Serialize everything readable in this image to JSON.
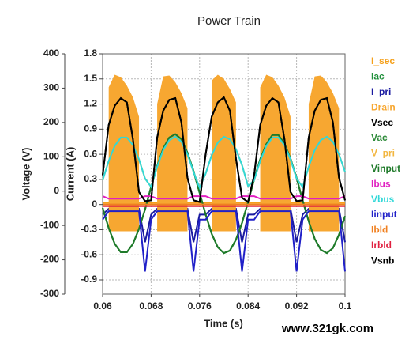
{
  "chart_data": {
    "type": "line",
    "title": "Power Train",
    "xlabel": "Time (s)",
    "ylabel": "Voltage (V)",
    "y2label": "Current (A)",
    "watermark": "www.321gk.com",
    "xlim": [
      0.06,
      0.1
    ],
    "xticks": [
      0.06,
      0.068,
      0.076,
      0.084,
      0.092,
      0.1
    ],
    "ylim": [
      -300,
      400
    ],
    "yticks": [
      -300,
      -200,
      -100,
      0,
      100,
      200,
      300,
      400
    ],
    "y2lim": [
      -1.07,
      1.8
    ],
    "y2ticks": [
      -0.9,
      -0.6,
      -0.3,
      0,
      0.3,
      0.6,
      0.9,
      1.2,
      1.5,
      1.8
    ],
    "grid": true,
    "legend": "right",
    "x": [
      0.06,
      0.061,
      0.062,
      0.063,
      0.064,
      0.065,
      0.066,
      0.067,
      0.068,
      0.069,
      0.07,
      0.071,
      0.072,
      0.073,
      0.074,
      0.075,
      0.076,
      0.077,
      0.078,
      0.079,
      0.08,
      0.081,
      0.082,
      0.083,
      0.084,
      0.085,
      0.086,
      0.087,
      0.088,
      0.089,
      0.09,
      0.091,
      0.092,
      0.093,
      0.094,
      0.095,
      0.096,
      0.097,
      0.098,
      0.099,
      0.1
    ],
    "series": [
      {
        "name": "I_sec",
        "color": "#f5a01a",
        "axis": "y2",
        "values": [
          0.02,
          0.02,
          0.02,
          0.02,
          0.02,
          0.02,
          0.02,
          0.02,
          0.02,
          0.02,
          0.02,
          0.02,
          0.02,
          0.02,
          0.02,
          0.02,
          0.02,
          0.02,
          0.02,
          0.02,
          0.02,
          0.02,
          0.02,
          0.02,
          0.02,
          0.02,
          0.02,
          0.02,
          0.02,
          0.02,
          0.02,
          0.02,
          0.02,
          0.02,
          0.02,
          0.02,
          0.02,
          0.02,
          0.02,
          0.02,
          0.02
        ]
      },
      {
        "name": "Iac",
        "color": "#1f8f3a",
        "axis": "y2",
        "values": [
          -0.04,
          -0.28,
          -0.47,
          -0.57,
          -0.57,
          -0.47,
          -0.29,
          -0.06,
          0.21,
          0.46,
          0.67,
          0.8,
          0.84,
          0.78,
          0.62,
          0.4,
          0.14,
          -0.12,
          -0.35,
          -0.51,
          -0.58,
          -0.55,
          -0.42,
          -0.22,
          0.03,
          0.3,
          0.54,
          0.72,
          0.83,
          0.83,
          0.73,
          0.55,
          0.32,
          0.05,
          -0.2,
          -0.41,
          -0.54,
          -0.58,
          -0.52,
          -0.36,
          -0.14
        ]
      },
      {
        "name": "I_pri",
        "color": "#1a1aa0",
        "axis": "y2",
        "values": [
          -0.12,
          -0.05,
          -0.05,
          -0.05,
          -0.05,
          -0.05,
          -0.05,
          -0.45,
          -0.12,
          -0.05,
          -0.05,
          -0.05,
          -0.05,
          -0.05,
          -0.05,
          -0.45,
          -0.12,
          -0.12,
          -0.05,
          -0.05,
          -0.05,
          -0.05,
          -0.05,
          -0.45,
          -0.12,
          -0.12,
          -0.05,
          -0.05,
          -0.05,
          -0.05,
          -0.05,
          -0.05,
          -0.45,
          -0.12,
          -0.05,
          -0.05,
          -0.05,
          -0.05,
          -0.05,
          -0.05,
          -0.45
        ]
      },
      {
        "name": "Drain",
        "color": "#f7a731",
        "axis": "y2",
        "values": [
          null,
          1.4,
          1.55,
          1.52,
          1.42,
          1.28,
          1.05,
          null,
          null,
          1.2,
          1.53,
          1.54,
          1.46,
          1.33,
          1.15,
          null,
          null,
          null,
          1.48,
          1.55,
          1.5,
          1.38,
          1.22,
          null,
          null,
          null,
          1.4,
          1.55,
          1.52,
          1.42,
          1.28,
          1.05,
          null,
          null,
          1.2,
          1.53,
          1.54,
          1.46,
          1.33,
          1.15,
          null
        ],
        "low": [
          null,
          -0.32,
          -0.32,
          -0.32,
          -0.32,
          -0.32,
          -0.32,
          null,
          null,
          -0.32,
          -0.32,
          -0.32,
          -0.32,
          -0.32,
          -0.32,
          null,
          null,
          null,
          -0.32,
          -0.32,
          -0.32,
          -0.32,
          -0.32,
          null,
          null,
          null,
          -0.32,
          -0.32,
          -0.32,
          -0.32,
          -0.32,
          -0.32,
          null,
          null,
          -0.32,
          -0.32,
          -0.32,
          -0.32,
          -0.32,
          -0.32,
          null
        ]
      },
      {
        "name": "Vsec",
        "color": "#000000",
        "axis": "y2",
        "values": [
          0.35,
          0.95,
          1.18,
          1.27,
          1.22,
          0.78,
          0.15,
          0.04,
          0.05,
          0.8,
          1.12,
          1.25,
          1.27,
          0.98,
          0.32,
          0.05,
          0.03,
          0.6,
          1.05,
          1.22,
          1.28,
          1.12,
          0.55,
          0.08,
          0.03,
          0.35,
          0.95,
          1.18,
          1.27,
          1.22,
          0.78,
          0.15,
          0.04,
          0.05,
          0.8,
          1.12,
          1.25,
          1.27,
          0.98,
          0.32,
          0.05
        ]
      },
      {
        "name": "Vac",
        "color": "#2e8b3a",
        "axis": "y2",
        "values": [
          -0.04,
          -0.28,
          -0.47,
          -0.57,
          -0.57,
          -0.47,
          -0.29,
          -0.06,
          0.21,
          0.46,
          0.67,
          0.8,
          0.84,
          0.78,
          0.62,
          0.4,
          0.14,
          -0.12,
          -0.35,
          -0.51,
          -0.58,
          -0.55,
          -0.42,
          -0.22,
          0.03,
          0.3,
          0.54,
          0.72,
          0.83,
          0.83,
          0.73,
          0.55,
          0.32,
          0.05,
          -0.2,
          -0.41,
          -0.54,
          -0.58,
          -0.52,
          -0.36,
          -0.14
        ]
      },
      {
        "name": "V_pri",
        "color": "#f2b640",
        "axis": "y2",
        "values": [
          0.29,
          0.52,
          0.7,
          0.8,
          0.8,
          0.71,
          0.54,
          0.31,
          0.21,
          0.45,
          0.65,
          0.77,
          0.81,
          0.75,
          0.6,
          0.39,
          0.2,
          0.37,
          0.59,
          0.74,
          0.81,
          0.78,
          0.66,
          0.47,
          0.22,
          0.29,
          0.52,
          0.7,
          0.8,
          0.8,
          0.71,
          0.54,
          0.31,
          0.21,
          0.45,
          0.65,
          0.77,
          0.81,
          0.75,
          0.6,
          0.39
        ]
      },
      {
        "name": "Vinput",
        "color": "#1f7a2a",
        "axis": "y2",
        "values": [
          -0.04,
          -0.28,
          -0.47,
          -0.57,
          -0.57,
          -0.47,
          -0.29,
          -0.06,
          0.21,
          0.46,
          0.67,
          0.8,
          0.84,
          0.78,
          0.62,
          0.4,
          0.14,
          -0.12,
          -0.35,
          -0.51,
          -0.58,
          -0.55,
          -0.42,
          -0.22,
          0.03,
          0.3,
          0.54,
          0.72,
          0.83,
          0.83,
          0.73,
          0.55,
          0.32,
          0.05,
          -0.2,
          -0.41,
          -0.54,
          -0.58,
          -0.52,
          -0.36,
          -0.14
        ]
      },
      {
        "name": "Ibus",
        "color": "#e020c0",
        "axis": "y2",
        "values": [
          0.1,
          0.07,
          0.07,
          0.07,
          0.07,
          0.07,
          0.07,
          0.1,
          0.1,
          0.07,
          0.07,
          0.07,
          0.07,
          0.07,
          0.07,
          0.1,
          0.1,
          0.1,
          0.07,
          0.07,
          0.07,
          0.07,
          0.07,
          0.1,
          0.1,
          0.1,
          0.07,
          0.07,
          0.07,
          0.07,
          0.07,
          0.07,
          0.1,
          0.1,
          0.07,
          0.07,
          0.07,
          0.07,
          0.07,
          0.07,
          0.1
        ]
      },
      {
        "name": "Vbus",
        "color": "#30d8d8",
        "axis": "y2",
        "values": [
          0.29,
          0.52,
          0.7,
          0.8,
          0.8,
          0.71,
          0.54,
          0.31,
          0.21,
          0.45,
          0.65,
          0.77,
          0.81,
          0.75,
          0.6,
          0.39,
          0.2,
          0.37,
          0.59,
          0.74,
          0.81,
          0.78,
          0.66,
          0.47,
          0.22,
          0.29,
          0.52,
          0.7,
          0.8,
          0.8,
          0.71,
          0.54,
          0.31,
          0.21,
          0.45,
          0.65,
          0.77,
          0.81,
          0.75,
          0.6,
          0.39
        ]
      },
      {
        "name": "Iinput",
        "color": "#2020c8",
        "axis": "y2",
        "values": [
          -0.18,
          -0.08,
          -0.08,
          -0.08,
          -0.08,
          -0.08,
          -0.08,
          -0.8,
          -0.18,
          -0.08,
          -0.08,
          -0.08,
          -0.08,
          -0.08,
          -0.08,
          -0.8,
          -0.18,
          -0.18,
          -0.08,
          -0.08,
          -0.08,
          -0.08,
          -0.08,
          -0.8,
          -0.18,
          -0.18,
          -0.08,
          -0.08,
          -0.08,
          -0.08,
          -0.08,
          -0.08,
          -0.8,
          -0.18,
          -0.08,
          -0.08,
          -0.08,
          -0.08,
          -0.08,
          -0.08,
          -0.8
        ]
      },
      {
        "name": "Ibld",
        "color": "#f08020",
        "axis": "y2",
        "values": [
          0,
          0,
          0,
          0,
          0,
          0,
          0,
          0,
          0,
          0,
          0,
          0,
          0,
          0,
          0,
          0,
          0,
          0,
          0,
          0,
          0,
          0,
          0,
          0,
          0,
          0,
          0,
          0,
          0,
          0,
          0,
          0,
          0,
          0,
          0,
          0,
          0,
          0,
          0,
          0,
          0
        ]
      },
      {
        "name": "Irbld",
        "color": "#e02040",
        "axis": "y2",
        "values": [
          -0.02,
          -0.02,
          -0.02,
          -0.02,
          -0.02,
          -0.02,
          -0.02,
          -0.02,
          -0.02,
          -0.02,
          -0.02,
          -0.02,
          -0.02,
          -0.02,
          -0.02,
          -0.02,
          -0.02,
          -0.02,
          -0.02,
          -0.02,
          -0.02,
          -0.02,
          -0.02,
          -0.02,
          -0.02,
          -0.02,
          -0.02,
          -0.02,
          -0.02,
          -0.02,
          -0.02,
          -0.02,
          -0.02,
          -0.02,
          -0.02,
          -0.02,
          -0.02,
          -0.02,
          -0.02,
          -0.02,
          -0.02
        ]
      },
      {
        "name": "Vsnb",
        "color": "#000000",
        "axis": "y2",
        "values": [
          0.35,
          0.95,
          1.18,
          1.27,
          1.22,
          0.78,
          0.15,
          0.04,
          0.05,
          0.8,
          1.12,
          1.25,
          1.27,
          0.98,
          0.32,
          0.05,
          0.03,
          0.6,
          1.05,
          1.22,
          1.28,
          1.12,
          0.55,
          0.08,
          0.03,
          0.35,
          0.95,
          1.18,
          1.27,
          1.22,
          0.78,
          0.15,
          0.04,
          0.05,
          0.8,
          1.12,
          1.25,
          1.27,
          0.98,
          0.32,
          0.05
        ]
      }
    ]
  }
}
